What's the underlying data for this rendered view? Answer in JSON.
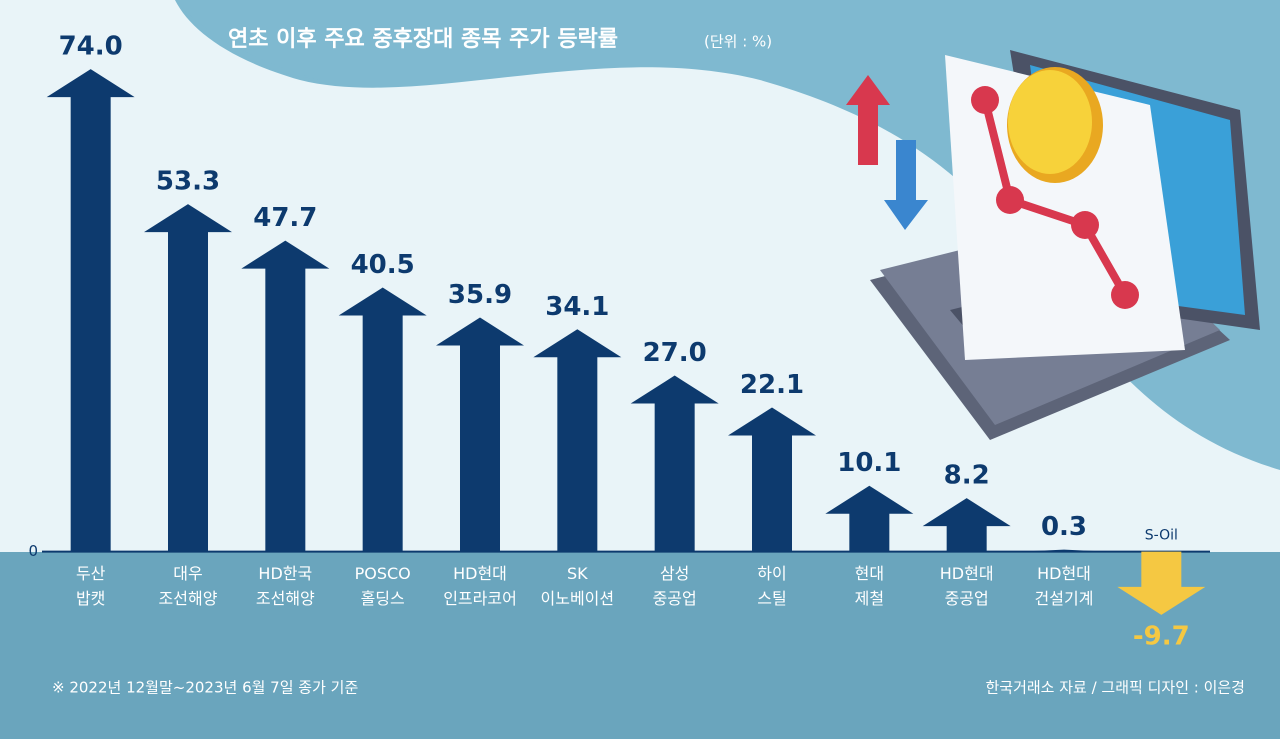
{
  "chart_data": {
    "type": "bar",
    "title": "연초 이후 주요 중후장대 종목 주가 등락률",
    "unit": "(단위 : %)",
    "categories": [
      [
        "두산",
        "밥캣"
      ],
      [
        "대우",
        "조선해양"
      ],
      [
        "HD한국",
        "조선해양"
      ],
      [
        "POSCO",
        "홀딩스"
      ],
      [
        "HD현대",
        "인프라코어"
      ],
      [
        "SK",
        "이노베이션"
      ],
      [
        "삼성",
        "중공업"
      ],
      [
        "하이",
        "스틸"
      ],
      [
        "현대",
        "제철"
      ],
      [
        "HD현대",
        "중공업"
      ],
      [
        "HD현대",
        "건설기계"
      ],
      [
        "S-Oil"
      ]
    ],
    "values": [
      74.0,
      53.3,
      47.7,
      40.5,
      35.9,
      34.1,
      27.0,
      22.1,
      10.1,
      8.2,
      0.3,
      -9.7
    ],
    "value_labels": [
      "74.0",
      "53.3",
      "47.7",
      "40.5",
      "35.9",
      "34.1",
      "27.0",
      "22.1",
      "10.1",
      "8.2",
      "0.3",
      "-9.7"
    ],
    "color": "#0d3a6e",
    "negative_color": "#f5c842",
    "ylim": [
      -20,
      80
    ],
    "yticks": [
      0
    ],
    "footnote": "※ 2022년 12월말~2023년 6월 7일 종가 기준",
    "source": "한국거래소 자료 / 그래픽 디자인 : 이은경"
  }
}
